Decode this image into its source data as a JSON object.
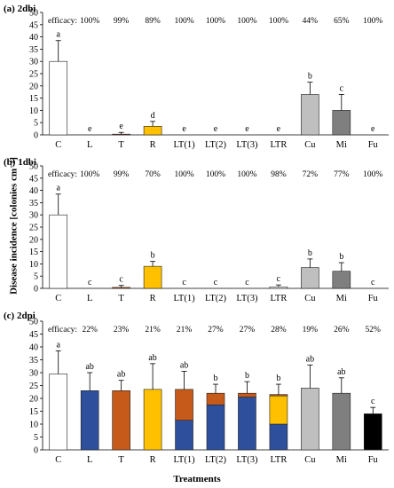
{
  "figure": {
    "ylabel": "Disease incidence [colonies cm⁻²]",
    "xlabel": "Treatments"
  },
  "colors": {
    "L": "#2e4f9b",
    "T": "#c55a1a",
    "R": "#ffc000",
    "Cu": "#bfbfbf",
    "Mi": "#7f7f7f",
    "Fu": "#000000",
    "C": "#ffffff"
  },
  "chart_data": [
    {
      "type": "bar",
      "title": "(a) 2dbi",
      "categories": [
        "C",
        "L",
        "T",
        "R",
        "LT(1)",
        "LT(2)",
        "LT(3)",
        "LTR",
        "Cu",
        "Mi",
        "Fu"
      ],
      "efficacy_label": "efficacy:",
      "efficacy": [
        "",
        "100%",
        "99%",
        "89%",
        "100%",
        "100%",
        "100%",
        "100%",
        "44%",
        "65%",
        "100%"
      ],
      "values": [
        30,
        0,
        0.3,
        3.5,
        0,
        0,
        0,
        0,
        16.5,
        10,
        0
      ],
      "errors": [
        8.5,
        0,
        0.7,
        2,
        0,
        0,
        0,
        0,
        5,
        6.5,
        0
      ],
      "letters": [
        "a",
        "e",
        "e",
        "d",
        "e",
        "e",
        "e",
        "e",
        "b",
        "c",
        "e"
      ],
      "ylim": [
        0,
        50
      ],
      "yticks": [
        0,
        5,
        10,
        15,
        20,
        25,
        30,
        35,
        40,
        45,
        50
      ]
    },
    {
      "type": "bar",
      "title": "(b) 1dbi",
      "categories": [
        "C",
        "L",
        "T",
        "R",
        "LT(1)",
        "LT(2)",
        "LT(3)",
        "LTR",
        "Cu",
        "Mi",
        "Fu"
      ],
      "efficacy_label": "efficacy:",
      "efficacy": [
        "",
        "100%",
        "99%",
        "70%",
        "100%",
        "100%",
        "100%",
        "98%",
        "72%",
        "77%",
        "100%"
      ],
      "values": [
        30,
        0,
        0.4,
        9,
        0,
        0,
        0,
        0.6,
        8.5,
        7,
        0
      ],
      "errors": [
        8.5,
        0,
        0.8,
        2,
        0,
        0,
        0,
        0.8,
        3.5,
        3.5,
        0
      ],
      "letters": [
        "a",
        "c",
        "c",
        "b",
        "c",
        "c",
        "c",
        "c",
        "b",
        "b",
        "c"
      ],
      "ylim": [
        0,
        50
      ],
      "yticks": [
        0,
        5,
        10,
        15,
        20,
        25,
        30,
        35,
        40,
        45,
        50
      ]
    },
    {
      "type": "bar",
      "title": "(c) 2dpi",
      "categories": [
        "C",
        "L",
        "T",
        "R",
        "LT(1)",
        "LT(2)",
        "LT(3)",
        "LTR",
        "Cu",
        "Mi",
        "Fu"
      ],
      "efficacy_label": "efficacy:",
      "efficacy": [
        "",
        "22%",
        "23%",
        "21%",
        "21%",
        "27%",
        "27%",
        "28%",
        "19%",
        "26%",
        "52%"
      ],
      "values": [
        29.5,
        23,
        23,
        23.5,
        23.5,
        22,
        22,
        21.5,
        24,
        22,
        14
      ],
      "errors": [
        9,
        7,
        4,
        10,
        7,
        3.5,
        4.5,
        4,
        9,
        6,
        2.5
      ],
      "letters": [
        "a",
        "ab",
        "ab",
        "ab",
        "ab",
        "b",
        "b",
        "b",
        "ab",
        "ab",
        "c"
      ],
      "stacks": [
        [
          [
            "C",
            29.5
          ]
        ],
        [
          [
            "L",
            23
          ]
        ],
        [
          [
            "T",
            23
          ]
        ],
        [
          [
            "R",
            23.5
          ]
        ],
        [
          [
            "L",
            11.5
          ],
          [
            "T",
            12
          ]
        ],
        [
          [
            "L",
            17.5
          ],
          [
            "T",
            4.5
          ]
        ],
        [
          [
            "L",
            20.5
          ],
          [
            "T",
            1.5
          ]
        ],
        [
          [
            "L",
            10
          ],
          [
            "R",
            11
          ],
          [
            "T",
            0.5
          ]
        ],
        [
          [
            "Cu",
            24
          ]
        ],
        [
          [
            "Mi",
            22
          ]
        ],
        [
          [
            "Fu",
            14
          ]
        ]
      ],
      "ylim": [
        0,
        50
      ],
      "yticks": [
        0,
        5,
        10,
        15,
        20,
        25,
        30,
        35,
        40,
        45,
        50
      ]
    }
  ]
}
